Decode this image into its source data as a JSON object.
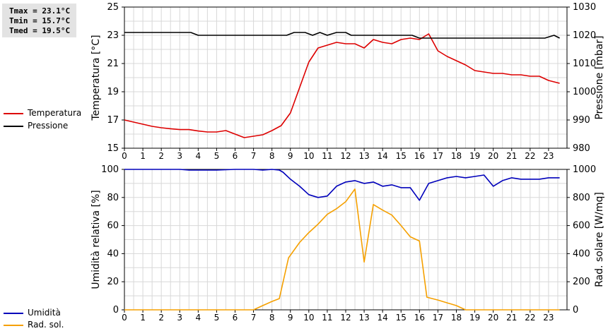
{
  "stats": [
    "Tmax = 23.1°C",
    "Tmin = 15.7°C",
    "Tmed = 19.5°C"
  ],
  "colors": {
    "temperatura": "#dd0000",
    "pressione": "#000000",
    "umidita": "#0000bb",
    "radiazione": "#f5a000",
    "grid": "#d8d8d8"
  },
  "chart_data": [
    {
      "type": "line",
      "xticks": [
        "0",
        "1",
        "2",
        "3",
        "4",
        "5",
        "6",
        "7",
        "8",
        "9",
        "10",
        "11",
        "12",
        "13",
        "14",
        "15",
        "16",
        "17",
        "18",
        "19",
        "20",
        "21",
        "22",
        "23"
      ],
      "xlim": [
        0,
        24
      ],
      "grid": true,
      "legend_placement": "left",
      "y_left": {
        "label": "Temperatura [°C]",
        "lim": [
          15,
          25
        ],
        "ticks": [
          "15",
          "17",
          "19",
          "21",
          "23",
          "25"
        ]
      },
      "y_right": {
        "label": "Pressione [mbar]",
        "lim": [
          980,
          1030
        ],
        "ticks": [
          "980",
          "990",
          "1000",
          "1010",
          "1020",
          "1030"
        ]
      },
      "series": [
        {
          "name": "Temperatura",
          "axis": "left",
          "x": [
            0,
            0.5,
            1,
            1.5,
            2,
            2.5,
            3,
            3.5,
            4,
            4.5,
            5,
            5.5,
            6,
            6.5,
            7,
            7.5,
            8,
            8.5,
            9,
            9.5,
            10,
            10.5,
            11,
            11.5,
            12,
            12.5,
            13,
            13.5,
            14,
            14.5,
            15,
            15.5,
            16,
            16.5,
            17,
            17.5,
            18,
            18.5,
            19,
            19.5,
            20,
            20.5,
            21,
            21.5,
            22,
            22.5,
            23,
            23.6
          ],
          "y": [
            17.0,
            16.85,
            16.7,
            16.55,
            16.45,
            16.38,
            16.32,
            16.32,
            16.22,
            16.15,
            16.15,
            16.25,
            16.0,
            15.75,
            15.85,
            15.95,
            16.25,
            16.6,
            17.5,
            19.3,
            21.1,
            22.1,
            22.3,
            22.5,
            22.4,
            22.4,
            22.1,
            22.7,
            22.5,
            22.4,
            22.7,
            22.8,
            22.7,
            23.1,
            21.9,
            21.5,
            21.2,
            20.9,
            20.5,
            20.4,
            20.3,
            20.3,
            20.2,
            20.2,
            20.1,
            20.1,
            19.8,
            19.6
          ]
        },
        {
          "name": "Pressione",
          "axis": "right",
          "x": [
            0,
            1,
            2,
            3,
            3.6,
            4,
            5,
            6,
            7,
            8,
            8.8,
            9.2,
            9.8,
            10.2,
            10.6,
            11,
            11.5,
            12,
            12.3,
            13,
            14,
            15,
            15.6,
            16,
            17,
            18,
            19,
            20,
            21,
            22,
            22.8,
            23.3,
            23.6
          ],
          "y": [
            1021,
            1021,
            1021,
            1021,
            1021,
            1020,
            1020,
            1020,
            1020,
            1020,
            1020,
            1021,
            1021,
            1020,
            1021,
            1020,
            1021,
            1021,
            1020,
            1020,
            1020,
            1020,
            1020,
            1019,
            1019,
            1019,
            1019,
            1019,
            1019,
            1019,
            1019,
            1020,
            1019
          ]
        }
      ]
    },
    {
      "type": "line",
      "xticks": [
        "0",
        "1",
        "2",
        "3",
        "4",
        "5",
        "6",
        "7",
        "8",
        "9",
        "10",
        "11",
        "12",
        "13",
        "14",
        "15",
        "16",
        "17",
        "18",
        "19",
        "20",
        "21",
        "22",
        "23"
      ],
      "xlim": [
        0,
        24
      ],
      "grid": true,
      "legend_placement": "left",
      "y_left": {
        "label": "Umidità relativa [%]",
        "lim": [
          0,
          100
        ],
        "ticks": [
          "0",
          "20",
          "40",
          "60",
          "80",
          "100"
        ]
      },
      "y_right": {
        "label": "Rad. solare [W/mq]",
        "lim": [
          0,
          1000
        ],
        "ticks": [
          "0",
          "200",
          "400",
          "600",
          "800",
          "1000"
        ]
      },
      "series": [
        {
          "name": "Umidità",
          "axis": "left",
          "x": [
            0,
            1,
            2,
            3,
            3.5,
            4,
            5,
            6,
            7,
            7.5,
            8,
            8.4,
            8.6,
            9,
            9.5,
            10,
            10.5,
            11,
            11.5,
            12,
            12.5,
            13,
            13.5,
            14,
            14.5,
            15,
            15.5,
            16,
            16.5,
            17,
            17.5,
            18,
            18.5,
            19,
            19.5,
            20,
            20.5,
            21,
            21.5,
            22,
            22.5,
            23,
            23.6
          ],
          "y": [
            100,
            100,
            100,
            100,
            99.5,
            99.5,
            99.5,
            100,
            100,
            99.5,
            100,
            99.5,
            98,
            93,
            88,
            82,
            80,
            81,
            88,
            91,
            92,
            90,
            91,
            88,
            89,
            87,
            87,
            78,
            90,
            92,
            94,
            95,
            94,
            95,
            96,
            88,
            92,
            94,
            93,
            93,
            93,
            94,
            94
          ]
        },
        {
          "name": "Rad. sol.",
          "axis": "right",
          "x": [
            0,
            1,
            2,
            3,
            4,
            5,
            6,
            7,
            7.5,
            8,
            8.4,
            8.9,
            9.5,
            10,
            10.5,
            11,
            11.5,
            12,
            12.5,
            13,
            13.5,
            14,
            14.5,
            15,
            15.5,
            16,
            16.4,
            17,
            17.5,
            18,
            18.5,
            19,
            20,
            21,
            22,
            23,
            23.6
          ],
          "y": [
            0,
            0,
            0,
            0,
            0,
            0,
            0,
            0,
            30,
            60,
            80,
            370,
            480,
            550,
            610,
            680,
            720,
            770,
            860,
            340,
            750,
            710,
            675,
            600,
            520,
            490,
            90,
            70,
            50,
            30,
            0,
            0,
            0,
            0,
            0,
            0,
            0
          ]
        }
      ]
    }
  ],
  "legend_items": [
    {
      "name": "Temperatura",
      "color": "#dd0000"
    },
    {
      "name": "Pressione",
      "color": "#000000"
    },
    {
      "name": "Umidità",
      "color": "#0000bb"
    },
    {
      "name": "Rad. sol.",
      "color": "#f5a000"
    }
  ]
}
